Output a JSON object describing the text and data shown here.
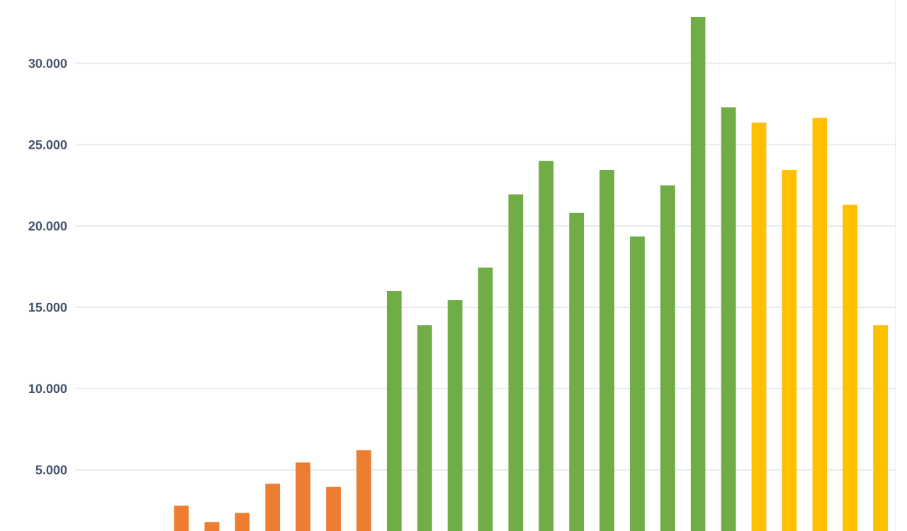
{
  "chart_data": {
    "type": "bar",
    "categories": [
      null,
      null,
      null,
      null,
      null,
      null,
      null,
      null,
      null,
      null,
      null,
      null,
      null,
      null,
      null,
      null,
      null,
      null,
      null,
      null,
      null,
      null,
      null,
      null,
      null,
      null,
      null
    ],
    "values": [
      null,
      null,
      null,
      2800,
      1800,
      2350,
      4150,
      5450,
      3950,
      6200,
      16000,
      13900,
      15450,
      17450,
      21950,
      24000,
      20800,
      23450,
      19350,
      22500,
      32850,
      27300,
      26350,
      23450,
      26650,
      21300,
      13900
    ],
    "colors": [
      "#ed7d31",
      "#ed7d31",
      "#ed7d31",
      "#ed7d31",
      "#ed7d31",
      "#ed7d31",
      "#ed7d31",
      "#ed7d31",
      "#ed7d31",
      "#ed7d31",
      "#70ad47",
      "#70ad47",
      "#70ad47",
      "#70ad47",
      "#70ad47",
      "#70ad47",
      "#70ad47",
      "#70ad47",
      "#70ad47",
      "#70ad47",
      "#70ad47",
      "#70ad47",
      "#ffc000",
      "#ffc000",
      "#ffc000",
      "#ffc000",
      "#ffc000"
    ],
    "ylim": [
      1240,
      33900
    ],
    "yticks": [
      {
        "value": 5000,
        "label": "5.000"
      },
      {
        "value": 10000,
        "label": "10.000"
      },
      {
        "value": 15000,
        "label": "15.000"
      },
      {
        "value": 20000,
        "label": "20.000"
      },
      {
        "value": 25000,
        "label": "25.000"
      },
      {
        "value": 30000,
        "label": "30.000"
      }
    ],
    "grid": "y",
    "tick_labels": "y"
  }
}
